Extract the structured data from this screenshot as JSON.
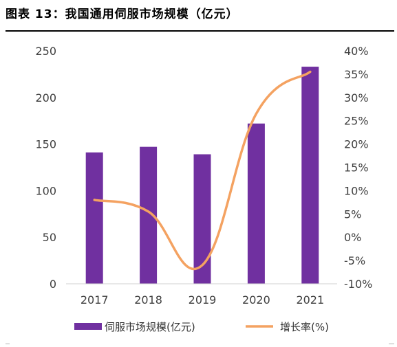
{
  "figure": {
    "title": "图表 13：我国通用伺服市场规模（亿元）"
  },
  "chart_data": {
    "type": "bar",
    "categories": [
      "2017",
      "2018",
      "2019",
      "2020",
      "2021"
    ],
    "series": [
      {
        "name": "伺服市场规模(亿元)",
        "type": "bar",
        "axis": "left",
        "color": "#7030A0",
        "values": [
          141,
          147,
          139,
          172,
          233
        ]
      },
      {
        "name": "增长率(%)",
        "type": "line",
        "axis": "right",
        "smooth": true,
        "color": "#F4A261",
        "values": [
          8,
          5.5,
          -6,
          26.5,
          35.5
        ]
      }
    ],
    "y_left": {
      "range": [
        0,
        250
      ],
      "ticks": [
        0,
        50,
        100,
        150,
        200,
        250
      ],
      "tick_labels": [
        "0",
        "50",
        "100",
        "150",
        "200",
        "250"
      ]
    },
    "y_right": {
      "range": [
        -10,
        40
      ],
      "ticks": [
        -10,
        -5,
        0,
        5,
        10,
        15,
        20,
        25,
        30,
        35,
        40
      ],
      "tick_labels": [
        "-10%",
        "-5%",
        "0%",
        "5%",
        "10%",
        "15%",
        "20%",
        "25%",
        "30%",
        "35%",
        "40%"
      ]
    },
    "grid": false,
    "legend_position": "bottom"
  }
}
